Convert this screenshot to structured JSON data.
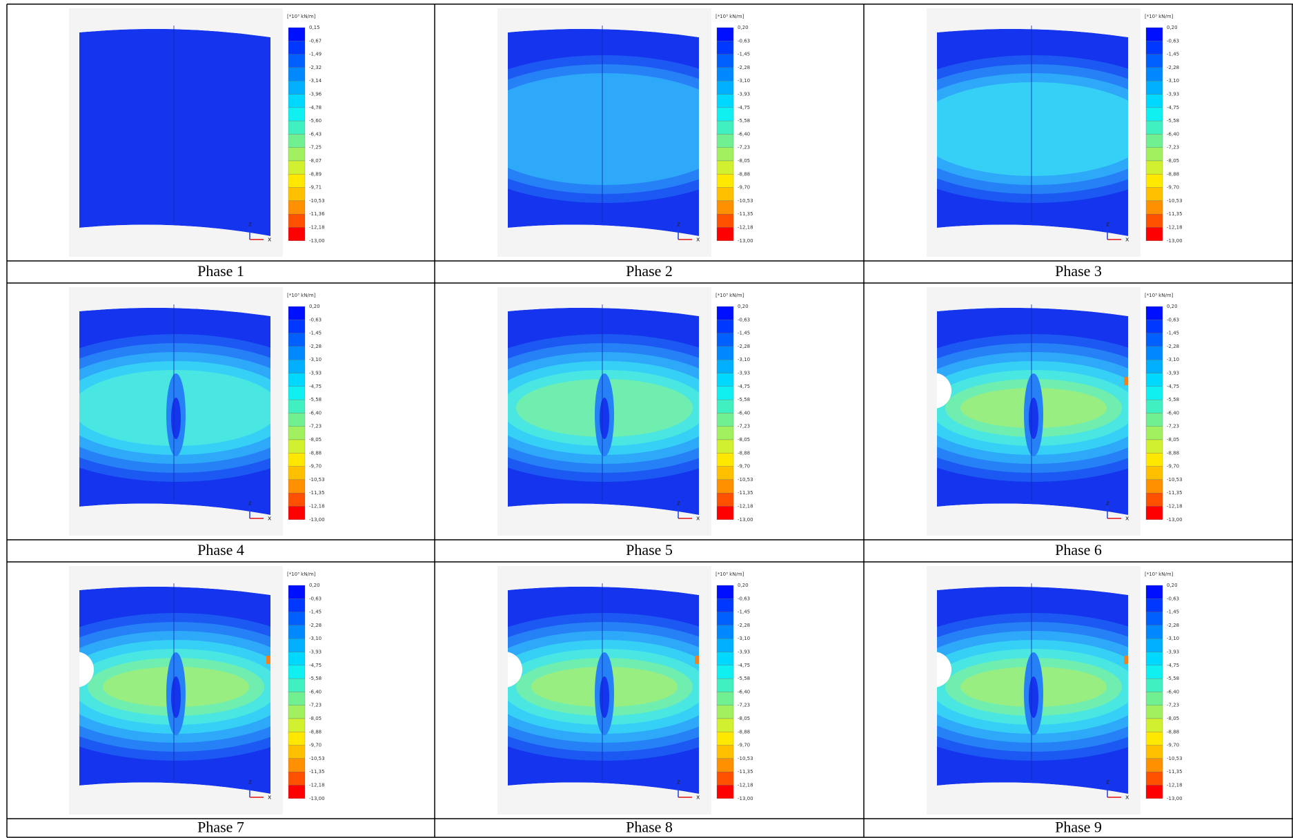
{
  "panels": [
    {
      "caption": "Phase 1",
      "legend_unit": "[*10³ kN/m]",
      "axis_z": "z",
      "axis_x": "x",
      "legend_ticks": [
        "0,15",
        "-0,67",
        "-1,49",
        "-2,32",
        "-3,14",
        "-3,96",
        "-4,78",
        "-5,60",
        "-6,43",
        "-7,25",
        "-8,07",
        "-8,89",
        "-9,71",
        "-10,53",
        "-11,36",
        "-12,18",
        "-13,00"
      ]
    },
    {
      "caption": "Phase 2",
      "legend_unit": "[*10³ kN/m]",
      "axis_z": "z",
      "axis_x": "x",
      "legend_ticks": [
        "0,20",
        "-0,63",
        "-1,45",
        "-2,28",
        "-3,10",
        "-3,93",
        "-4,75",
        "-5,58",
        "-6,40",
        "-7,23",
        "-8,05",
        "-8,88",
        "-9,70",
        "-10,53",
        "-11,35",
        "-12,18",
        "-13,00"
      ]
    },
    {
      "caption": "Phase 3",
      "legend_unit": "[*10³ kN/m]",
      "axis_z": "z",
      "axis_x": "x",
      "legend_ticks": [
        "0,20",
        "-0,63",
        "-1,45",
        "-2,28",
        "-3,10",
        "-3,93",
        "-4,75",
        "-5,58",
        "-6,40",
        "-7,23",
        "-8,05",
        "-8,88",
        "-9,70",
        "-10,53",
        "-11,35",
        "-12,18",
        "-13,00"
      ]
    },
    {
      "caption": "Phase 4",
      "legend_unit": "[*10³ kN/m]",
      "axis_z": "z",
      "axis_x": "x",
      "legend_ticks": [
        "0,20",
        "-0,63",
        "-1,45",
        "-2,28",
        "-3,10",
        "-3,93",
        "-4,75",
        "-5,58",
        "-6,40",
        "-7,23",
        "-8,05",
        "-8,88",
        "-9,70",
        "-10,53",
        "-11,35",
        "-12,18",
        "-13,00"
      ]
    },
    {
      "caption": "Phase 5",
      "legend_unit": "[*10³ kN/m]",
      "axis_z": "z",
      "axis_x": "x",
      "legend_ticks": [
        "0,20",
        "-0,63",
        "-1,45",
        "-2,28",
        "-3,10",
        "-3,93",
        "-4,75",
        "-5,58",
        "-6,40",
        "-7,23",
        "-8,05",
        "-8,88",
        "-9,70",
        "-10,53",
        "-11,35",
        "-12,18",
        "-13,00"
      ]
    },
    {
      "caption": "Phase 6",
      "legend_unit": "[*10³ kN/m]",
      "axis_z": "z",
      "axis_x": "x",
      "legend_ticks": [
        "0,20",
        "-0,63",
        "-1,45",
        "-2,28",
        "-3,10",
        "-3,93",
        "-4,75",
        "-5,58",
        "-6,40",
        "-7,23",
        "-8,05",
        "-8,88",
        "-9,70",
        "-10,53",
        "-11,35",
        "-12,18",
        "-13,00"
      ]
    },
    {
      "caption": "Phase 7",
      "legend_unit": "[*10³ kN/m]",
      "axis_z": "z",
      "axis_x": "x",
      "legend_ticks": [
        "0,20",
        "-0,63",
        "-1,45",
        "-2,28",
        "-3,10",
        "-3,93",
        "-4,75",
        "-5,58",
        "-6,40",
        "-7,23",
        "-8,05",
        "-8,88",
        "-9,70",
        "-10,53",
        "-11,35",
        "-12,18",
        "-13,00"
      ]
    },
    {
      "caption": "Phase 8",
      "legend_unit": "[*10³ kN/m]",
      "axis_z": "z",
      "axis_x": "x",
      "legend_ticks": [
        "0,20",
        "-0,63",
        "-1,45",
        "-2,28",
        "-3,10",
        "-3,93",
        "-4,75",
        "-5,58",
        "-6,40",
        "-7,23",
        "-8,05",
        "-8,88",
        "-9,70",
        "-10,53",
        "-11,35",
        "-12,18",
        "-13,00"
      ]
    },
    {
      "caption": "Phase 9",
      "legend_unit": "[*10³ kN/m]",
      "axis_z": "z",
      "axis_x": "x",
      "legend_ticks": [
        "0,20",
        "-0,63",
        "-1,45",
        "-2,28",
        "-3,10",
        "-3,93",
        "-4,75",
        "-5,58",
        "-6,40",
        "-7,23",
        "-8,05",
        "-8,88",
        "-9,70",
        "-10,53",
        "-11,35",
        "-12,18",
        "-13,00"
      ]
    }
  ]
}
